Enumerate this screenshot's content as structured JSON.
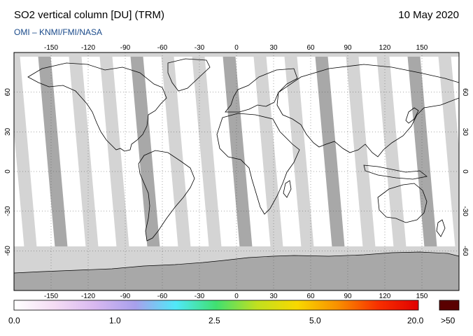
{
  "header": {
    "title": "SO2 vertical column [DU] (TRM)",
    "date": "10 May 2020",
    "credit": "OMI  –  KNMI/FMI/NASA"
  },
  "map": {
    "projection": "equirectangular",
    "lon_ticks_top": [
      "-150",
      "-120",
      "-90",
      "-60",
      "-30",
      "0",
      "30",
      "60",
      "90",
      "120",
      "150"
    ],
    "lon_ticks_bottom": [
      "-150",
      "-120",
      "-90",
      "-60",
      "-30",
      "0",
      "30",
      "60",
      "90",
      "120",
      "150"
    ],
    "lat_ticks": [
      "60",
      "30",
      "0",
      "-30",
      "-60"
    ],
    "colors": {
      "ocean": "#ffffff",
      "no_data_swath": "#d4d4d4",
      "no_data_dark": "#a8a8a8",
      "coastline": "#000000",
      "grid": "#555555"
    }
  },
  "colorbar": {
    "labels": [
      "0.0",
      "1.0",
      "2.5",
      "5.0",
      "20.0",
      ">50"
    ],
    "gradient": [
      "#ffffff",
      "#f4dcf4",
      "#d8b8f0",
      "#a8a0ec",
      "#50e8f8",
      "#40e070",
      "#c0e020",
      "#f8d800",
      "#f89000",
      "#f83000",
      "#e00000"
    ],
    "overflow_color": "#5a0000"
  }
}
